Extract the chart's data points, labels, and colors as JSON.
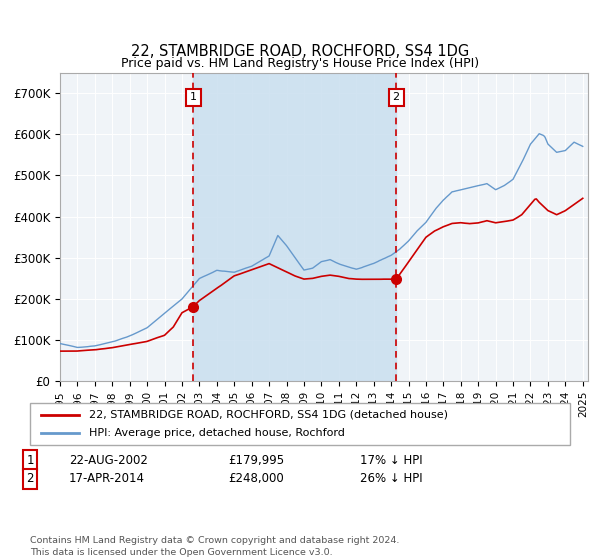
{
  "title": "22, STAMBRIDGE ROAD, ROCHFORD, SS4 1DG",
  "subtitle": "Price paid vs. HM Land Registry's House Price Index (HPI)",
  "legend_line1": "22, STAMBRIDGE ROAD, ROCHFORD, SS4 1DG (detached house)",
  "legend_line2": "HPI: Average price, detached house, Rochford",
  "annotation1_label": "1",
  "annotation1_date": "22-AUG-2002",
  "annotation1_price": "£179,995",
  "annotation1_hpi": "17% ↓ HPI",
  "annotation2_label": "2",
  "annotation2_date": "17-APR-2014",
  "annotation2_price": "£248,000",
  "annotation2_hpi": "26% ↓ HPI",
  "footnote": "Contains HM Land Registry data © Crown copyright and database right 2024.\nThis data is licensed under the Open Government Licence v3.0.",
  "hpi_color": "#6699cc",
  "price_color": "#cc0000",
  "vline_color": "#cc0000",
  "shade_color": "#cce0f0",
  "bg_color": "#f0f4f8",
  "ylim": [
    0,
    750000
  ],
  "yticks": [
    0,
    100000,
    200000,
    300000,
    400000,
    500000,
    600000,
    700000
  ],
  "ytick_labels": [
    "£0",
    "£100K",
    "£200K",
    "£300K",
    "£400K",
    "£500K",
    "£600K",
    "£700K"
  ],
  "sale1_year": 2002.64,
  "sale2_year": 2014.29,
  "sale1_price": 179995,
  "sale2_price": 248000
}
